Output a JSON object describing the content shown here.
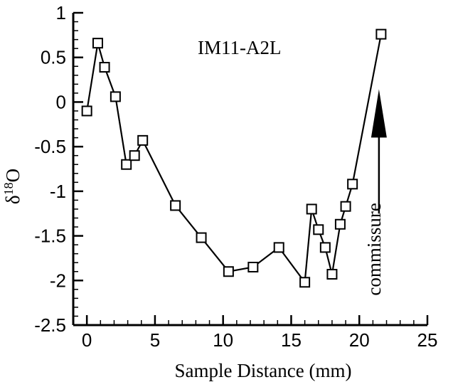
{
  "chart_data": {
    "type": "line",
    "title": "",
    "xlabel": "Sample Distance (mm)",
    "ylabel": "δ18O",
    "ylabel_parts": {
      "main": "δ",
      "sup": "18",
      "rest": "O"
    },
    "xlim": [
      -1,
      25
    ],
    "ylim": [
      -2.5,
      1
    ],
    "xticks": [
      0,
      5,
      10,
      15,
      20,
      25
    ],
    "yticks": [
      -2.5,
      -2,
      -1.5,
      -1,
      -0.5,
      0,
      0.5,
      1
    ],
    "xtick_labels": [
      "0",
      "5",
      "10",
      "15",
      "20",
      "25"
    ],
    "ytick_labels": [
      "-2.5",
      "-2",
      "-1.5",
      "-1",
      "-0.5",
      "0",
      "0.5",
      "1"
    ],
    "grid": false,
    "series": [
      {
        "name": "",
        "marker": "open-square",
        "color": "#000000",
        "x": [
          0,
          0.8,
          1.3,
          2.1,
          2.9,
          3.5,
          4.1,
          6.5,
          8.4,
          10.4,
          12.2,
          14.1,
          16.0,
          16.5,
          17.0,
          17.5,
          18.0,
          18.6,
          19.0,
          19.5,
          21.6
        ],
        "y": [
          -0.1,
          0.66,
          0.39,
          0.06,
          -0.7,
          -0.6,
          -0.43,
          -1.16,
          -1.52,
          -1.9,
          -1.85,
          -1.63,
          -2.02,
          -1.2,
          -1.43,
          -1.63,
          -1.93,
          -1.37,
          -1.17,
          -0.92,
          0.76
        ]
      }
    ],
    "annotations": [
      {
        "text": "IM11-A2L",
        "kind": "sample-label"
      },
      {
        "text": "commissure",
        "kind": "arrow-label",
        "arrow_x": 21.6,
        "arrow_y_from": -1.25,
        "arrow_y_to": 0.0
      }
    ]
  }
}
